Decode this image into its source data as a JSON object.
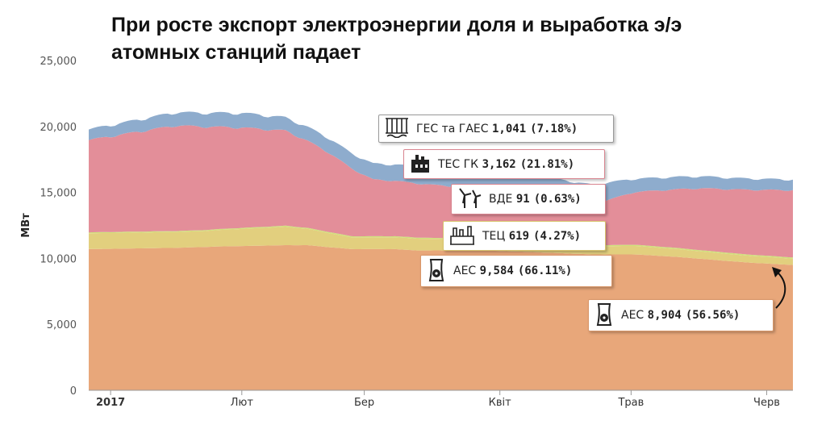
{
  "title": "При росте экспорт электроэнергии доля и выработка э/э атомных станций падает",
  "chart_data": {
    "type": "area",
    "stacked": true,
    "ylabel": "МВт",
    "ylim": [
      0,
      25000
    ],
    "yticks": [
      0,
      5000,
      10000,
      15000,
      20000,
      25000
    ],
    "ytick_labels": [
      "0",
      "5,000",
      "10,000",
      "15,000",
      "20,000",
      "25,000"
    ],
    "xticks": [
      {
        "label": "2017",
        "day": 5,
        "bold": true
      },
      {
        "label": "Лют",
        "day": 35,
        "bold": false
      },
      {
        "label": "Бер",
        "day": 63,
        "bold": false
      },
      {
        "label": "Квіт",
        "day": 94,
        "bold": false
      },
      {
        "label": "Трав",
        "day": 124,
        "bold": false
      },
      {
        "label": "Черв",
        "day": 155,
        "bold": false
      }
    ],
    "x_start_day": 0,
    "x_end_day": 161,
    "grid": false,
    "series": [
      {
        "name": "АЕС",
        "color": "#e8a77a",
        "anchors": [
          [
            0,
            10700
          ],
          [
            20,
            10800
          ],
          [
            30,
            10900
          ],
          [
            45,
            11000
          ],
          [
            50,
            11000
          ],
          [
            60,
            10700
          ],
          [
            70,
            10700
          ],
          [
            75,
            10600
          ],
          [
            90,
            10600
          ],
          [
            100,
            10500
          ],
          [
            115,
            10300
          ],
          [
            125,
            10300
          ],
          [
            135,
            10100
          ],
          [
            150,
            9700
          ],
          [
            161,
            9500
          ]
        ]
      },
      {
        "name": "ТЕЦ",
        "color": "#e2cf7e",
        "anchors": [
          [
            0,
            1200
          ],
          [
            25,
            1200
          ],
          [
            45,
            1400
          ],
          [
            60,
            900
          ],
          [
            75,
            900
          ],
          [
            100,
            700
          ],
          [
            115,
            600
          ],
          [
            125,
            650
          ],
          [
            140,
            560
          ],
          [
            161,
            480
          ]
        ]
      },
      {
        "name": "ВДЕ",
        "color": "#cfe07a",
        "anchors": [
          [
            0,
            70
          ],
          [
            161,
            90
          ]
        ]
      },
      {
        "name": "ТЕС ГК",
        "color": "#e38e99",
        "anchors": [
          [
            0,
            7000
          ],
          [
            20,
            8000
          ],
          [
            35,
            7600
          ],
          [
            45,
            7200
          ],
          [
            55,
            6000
          ],
          [
            65,
            4300
          ],
          [
            80,
            4000
          ],
          [
            90,
            3800
          ],
          [
            100,
            3300
          ],
          [
            115,
            3100
          ],
          [
            125,
            4000
          ],
          [
            140,
            4700
          ],
          [
            161,
            5100
          ]
        ]
      },
      {
        "name": "ГЕС та ГАЕС",
        "color": "#8eaccd",
        "anchors": [
          [
            0,
            800
          ],
          [
            20,
            1000
          ],
          [
            35,
            1100
          ],
          [
            45,
            1000
          ],
          [
            55,
            1100
          ],
          [
            65,
            1200
          ],
          [
            80,
            1300
          ],
          [
            95,
            1500
          ],
          [
            105,
            1700
          ],
          [
            115,
            1500
          ],
          [
            125,
            1000
          ],
          [
            140,
            900
          ],
          [
            161,
            800
          ]
        ]
      }
    ],
    "tooltips": [
      {
        "series": "ГЕС та ГАЕС",
        "label": "ГЕС та ГАЕС",
        "value": "1,041",
        "percent": "(7.18%)",
        "border": "#8eaccd",
        "icon": "hydro-plant-icon"
      },
      {
        "series": "ТЕС ГК",
        "label": "ТЕС ГК",
        "value": "3,162",
        "percent": "(21.81%)",
        "border": "#e38e99",
        "icon": "thermal-plant-icon"
      },
      {
        "series": "ВДЕ",
        "label": "ВДЕ",
        "value": "91",
        "percent": "(0.63%)",
        "border": "#e38e99",
        "icon": "wind-turbine-icon"
      },
      {
        "series": "ТЕЦ",
        "label": "ТЕЦ",
        "value": "619",
        "percent": "(4.27%)",
        "border": "#e2cf7e",
        "icon": "chp-plant-icon"
      },
      {
        "series": "АЕС",
        "label": "АЕС",
        "value": "9,584",
        "percent": "(66.11%)",
        "border": "#e8a77a",
        "icon": "nuclear-plant-icon"
      },
      {
        "series": "АЕС",
        "label": "АЕС",
        "value": "8,904",
        "percent": "(56.56%)",
        "border": "#e8a77a",
        "icon": "nuclear-plant-icon"
      }
    ]
  }
}
